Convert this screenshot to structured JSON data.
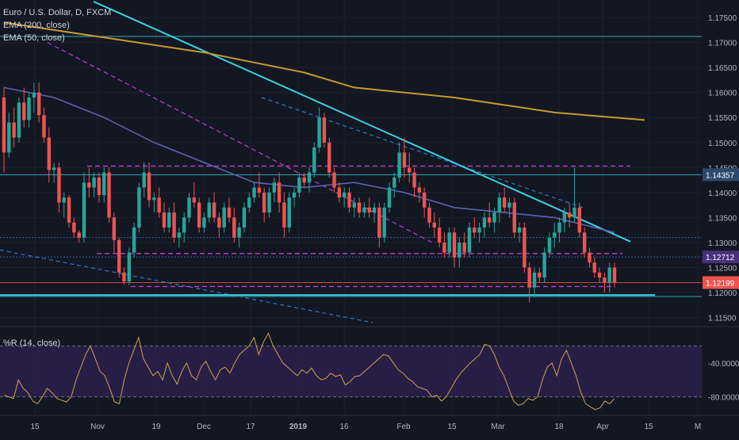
{
  "legend": {
    "title": "Euro / U.S. Dollar, D, FXCM",
    "ema200": "EMA (200, close)",
    "ema50": "EMA (50, close)",
    "wr": "%R (14, close)"
  },
  "colors": {
    "background": "#131722",
    "up": "#26a69a",
    "down": "#ef5350",
    "ema200": "#c79a2e",
    "ema50": "#5d62b5",
    "trendline": "#3ad0e0",
    "dashed_magenta": "#c43bd0",
    "dashed_blue": "#2f79c9",
    "wr_line": "#c9a44a",
    "wr_band": "#2a1f4a"
  },
  "chart_data": [
    {
      "type": "candlestick",
      "symbol": "Euro / U.S. Dollar, D, FXCM",
      "ylim": [
        1.1135,
        1.1785
      ],
      "y_ticks": [
        "1.17500",
        "1.17000",
        "1.16500",
        "1.16000",
        "1.15500",
        "1.15000",
        "1.14500",
        "1.14000",
        "1.13500",
        "1.13000",
        "1.12500",
        "1.12000",
        "1.11500"
      ],
      "x_ticks": [
        "15",
        "Nov",
        "19",
        "Dec",
        "17",
        "2019",
        "16",
        "Feb",
        "15",
        "Mar",
        "18",
        "Apr",
        "15",
        "M"
      ],
      "price_labels": [
        {
          "value": "1.14357",
          "color": "#2c4a6e"
        },
        {
          "value": "1.12712",
          "color": "#4a2f7a"
        },
        {
          "value": "1.12199",
          "color": "#ef5350"
        }
      ],
      "ohlc": [
        [
          1.159,
          1.161,
          1.144,
          1.148
        ],
        [
          1.148,
          1.156,
          1.147,
          1.154
        ],
        [
          1.154,
          1.157,
          1.149,
          1.151
        ],
        [
          1.151,
          1.159,
          1.15,
          1.158
        ],
        [
          1.158,
          1.161,
          1.153,
          1.1545
        ],
        [
          1.1545,
          1.16,
          1.153,
          1.159
        ],
        [
          1.159,
          1.162,
          1.156,
          1.16
        ],
        [
          1.16,
          1.162,
          1.154,
          1.1555
        ],
        [
          1.1555,
          1.157,
          1.15,
          1.151
        ],
        [
          1.151,
          1.153,
          1.142,
          1.1445
        ],
        [
          1.1445,
          1.146,
          1.142,
          1.145
        ],
        [
          1.145,
          1.146,
          1.136,
          1.138
        ],
        [
          1.138,
          1.14,
          1.135,
          1.139
        ],
        [
          1.139,
          1.1395,
          1.133,
          1.134
        ],
        [
          1.134,
          1.135,
          1.131,
          1.132
        ],
        [
          1.132,
          1.1325,
          1.13,
          1.131
        ],
        [
          1.131,
          1.144,
          1.13,
          1.142
        ],
        [
          1.142,
          1.145,
          1.139,
          1.141
        ],
        [
          1.141,
          1.144,
          1.139,
          1.143
        ],
        [
          1.143,
          1.144,
          1.138,
          1.1395
        ],
        [
          1.1395,
          1.145,
          1.138,
          1.144
        ],
        [
          1.144,
          1.145,
          1.134,
          1.135
        ],
        [
          1.135,
          1.136,
          1.128,
          1.1305
        ],
        [
          1.1305,
          1.131,
          1.123,
          1.124
        ],
        [
          1.124,
          1.125,
          1.1216,
          1.1222
        ],
        [
          1.1222,
          1.129,
          1.1215,
          1.128
        ],
        [
          1.128,
          1.134,
          1.127,
          1.133
        ],
        [
          1.133,
          1.142,
          1.132,
          1.141
        ],
        [
          1.141,
          1.146,
          1.139,
          1.144
        ],
        [
          1.144,
          1.146,
          1.137,
          1.1385
        ],
        [
          1.1385,
          1.14,
          1.136,
          1.139
        ],
        [
          1.139,
          1.141,
          1.135,
          1.136
        ],
        [
          1.136,
          1.138,
          1.132,
          1.133
        ],
        [
          1.133,
          1.137,
          1.132,
          1.136
        ],
        [
          1.136,
          1.138,
          1.13,
          1.131
        ],
        [
          1.131,
          1.133,
          1.129,
          1.132
        ],
        [
          1.132,
          1.136,
          1.13,
          1.135
        ],
        [
          1.135,
          1.14,
          1.134,
          1.139
        ],
        [
          1.139,
          1.142,
          1.137,
          1.138
        ],
        [
          1.138,
          1.139,
          1.132,
          1.133
        ],
        [
          1.133,
          1.136,
          1.132,
          1.135
        ],
        [
          1.135,
          1.139,
          1.134,
          1.138
        ],
        [
          1.138,
          1.14,
          1.134,
          1.135
        ],
        [
          1.135,
          1.136,
          1.131,
          1.133
        ],
        [
          1.133,
          1.138,
          1.132,
          1.137
        ],
        [
          1.137,
          1.139,
          1.134,
          1.135
        ],
        [
          1.135,
          1.137,
          1.13,
          1.131
        ],
        [
          1.131,
          1.134,
          1.129,
          1.133
        ],
        [
          1.133,
          1.138,
          1.132,
          1.137
        ],
        [
          1.137,
          1.14,
          1.136,
          1.139
        ],
        [
          1.139,
          1.142,
          1.138,
          1.141
        ],
        [
          1.141,
          1.144,
          1.139,
          1.14
        ],
        [
          1.14,
          1.141,
          1.134,
          1.136
        ],
        [
          1.136,
          1.141,
          1.135,
          1.14
        ],
        [
          1.14,
          1.143,
          1.138,
          1.142
        ],
        [
          1.142,
          1.144,
          1.136,
          1.138
        ],
        [
          1.138,
          1.14,
          1.131,
          1.133
        ],
        [
          1.133,
          1.14,
          1.132,
          1.139
        ],
        [
          1.139,
          1.141,
          1.137,
          1.14
        ],
        [
          1.14,
          1.144,
          1.139,
          1.143
        ],
        [
          1.143,
          1.144,
          1.141,
          1.142
        ],
        [
          1.142,
          1.145,
          1.14,
          1.144
        ],
        [
          1.144,
          1.15,
          1.143,
          1.149
        ],
        [
          1.149,
          1.157,
          1.148,
          1.155
        ],
        [
          1.155,
          1.156,
          1.149,
          1.15
        ],
        [
          1.15,
          1.151,
          1.143,
          1.144
        ],
        [
          1.144,
          1.145,
          1.14,
          1.141
        ],
        [
          1.141,
          1.142,
          1.138,
          1.139
        ],
        [
          1.139,
          1.141,
          1.137,
          1.14
        ],
        [
          1.14,
          1.141,
          1.136,
          1.137
        ],
        [
          1.137,
          1.139,
          1.135,
          1.138
        ],
        [
          1.138,
          1.139,
          1.135,
          1.136
        ],
        [
          1.136,
          1.138,
          1.135,
          1.137
        ],
        [
          1.137,
          1.139,
          1.135,
          1.136
        ],
        [
          1.136,
          1.138,
          1.134,
          1.137
        ],
        [
          1.137,
          1.138,
          1.129,
          1.131
        ],
        [
          1.131,
          1.138,
          1.13,
          1.137
        ],
        [
          1.137,
          1.142,
          1.136,
          1.141
        ],
        [
          1.141,
          1.144,
          1.139,
          1.143
        ],
        [
          1.143,
          1.15,
          1.142,
          1.148
        ],
        [
          1.148,
          1.151,
          1.143,
          1.145
        ],
        [
          1.145,
          1.148,
          1.142,
          1.144
        ],
        [
          1.144,
          1.145,
          1.139,
          1.141
        ],
        [
          1.141,
          1.142,
          1.138,
          1.14
        ],
        [
          1.14,
          1.141,
          1.135,
          1.137
        ],
        [
          1.137,
          1.138,
          1.133,
          1.134
        ],
        [
          1.134,
          1.136,
          1.131,
          1.133
        ],
        [
          1.133,
          1.135,
          1.129,
          1.13
        ],
        [
          1.13,
          1.132,
          1.127,
          1.128
        ],
        [
          1.128,
          1.133,
          1.127,
          1.132
        ],
        [
          1.132,
          1.133,
          1.125,
          1.127
        ],
        [
          1.127,
          1.131,
          1.125,
          1.13
        ],
        [
          1.13,
          1.132,
          1.127,
          1.128
        ],
        [
          1.128,
          1.134,
          1.127,
          1.133
        ],
        [
          1.133,
          1.135,
          1.131,
          1.132
        ],
        [
          1.132,
          1.134,
          1.13,
          1.133
        ],
        [
          1.133,
          1.136,
          1.131,
          1.135
        ],
        [
          1.135,
          1.138,
          1.133,
          1.134
        ],
        [
          1.134,
          1.137,
          1.132,
          1.136
        ],
        [
          1.136,
          1.14,
          1.134,
          1.139
        ],
        [
          1.139,
          1.141,
          1.136,
          1.137
        ],
        [
          1.137,
          1.139,
          1.135,
          1.138
        ],
        [
          1.138,
          1.139,
          1.131,
          1.132
        ],
        [
          1.132,
          1.134,
          1.13,
          1.133
        ],
        [
          1.133,
          1.134,
          1.124,
          1.125
        ],
        [
          1.125,
          1.126,
          1.118,
          1.121
        ],
        [
          1.121,
          1.125,
          1.119,
          1.124
        ],
        [
          1.124,
          1.125,
          1.122,
          1.123
        ],
        [
          1.123,
          1.129,
          1.122,
          1.128
        ],
        [
          1.128,
          1.132,
          1.127,
          1.131
        ],
        [
          1.131,
          1.134,
          1.129,
          1.132
        ],
        [
          1.132,
          1.135,
          1.13,
          1.134
        ],
        [
          1.134,
          1.137,
          1.132,
          1.136
        ],
        [
          1.136,
          1.138,
          1.133,
          1.135
        ],
        [
          1.135,
          1.145,
          1.134,
          1.137
        ],
        [
          1.137,
          1.138,
          1.131,
          1.132
        ],
        [
          1.132,
          1.133,
          1.127,
          1.128
        ],
        [
          1.128,
          1.129,
          1.125,
          1.126
        ],
        [
          1.126,
          1.127,
          1.123,
          1.124
        ],
        [
          1.124,
          1.125,
          1.122,
          1.123
        ],
        [
          1.123,
          1.124,
          1.12,
          1.122
        ],
        [
          1.122,
          1.126,
          1.12,
          1.125
        ],
        [
          1.125,
          1.126,
          1.121,
          1.122
        ]
      ],
      "ema200": [
        [
          0,
          1.174
        ],
        [
          20,
          1.171
        ],
        [
          40,
          1.168
        ],
        [
          60,
          1.164
        ],
        [
          70,
          1.161
        ],
        [
          90,
          1.159
        ],
        [
          110,
          1.156
        ],
        [
          128,
          1.1545
        ]
      ],
      "ema50": [
        [
          0,
          1.161
        ],
        [
          10,
          1.159
        ],
        [
          20,
          1.155
        ],
        [
          30,
          1.15
        ],
        [
          40,
          1.146
        ],
        [
          50,
          1.142
        ],
        [
          60,
          1.141
        ],
        [
          70,
          1.142
        ],
        [
          80,
          1.14
        ],
        [
          90,
          1.137
        ],
        [
          100,
          1.136
        ],
        [
          110,
          1.135
        ],
        [
          118,
          1.133
        ],
        [
          122,
          1.132
        ]
      ],
      "wr_panel": {
        "name": "%R (14, close)",
        "y_ticks": [
          "-40.0000",
          "-80.0000"
        ],
        "ylim": [
          -100,
          0
        ],
        "band": [
          -20,
          -80
        ],
        "values": [
          -78,
          -80,
          -82,
          -60,
          -70,
          -75,
          -85,
          -88,
          -80,
          -70,
          -75,
          -82,
          -84,
          -86,
          -80,
          -60,
          -45,
          -30,
          -20,
          -35,
          -50,
          -55,
          -70,
          -86,
          -88,
          -60,
          -40,
          -25,
          -10,
          -35,
          -45,
          -55,
          -50,
          -60,
          -40,
          -55,
          -65,
          -50,
          -40,
          -55,
          -60,
          -45,
          -38,
          -50,
          -60,
          -48,
          -45,
          -52,
          -40,
          -30,
          -25,
          -20,
          -10,
          -30,
          -15,
          -5,
          -20,
          -30,
          -40,
          -45,
          -50,
          -55,
          -48,
          -52,
          -46,
          -55,
          -60,
          -58,
          -52,
          -56,
          -54,
          -66,
          -62,
          -56,
          -55,
          -50,
          -45,
          -40,
          -35,
          -30,
          -32,
          -40,
          -48,
          -52,
          -58,
          -62,
          -68,
          -70,
          -72,
          -80,
          -78,
          -85,
          -80,
          -70,
          -60,
          -52,
          -46,
          -40,
          -35,
          -30,
          -18,
          -20,
          -30,
          -45,
          -55,
          -70,
          -85,
          -90,
          -88,
          -82,
          -84,
          -80,
          -60,
          -45,
          -40,
          -55,
          -35,
          -25,
          -40,
          -55,
          -75,
          -88,
          -92,
          -95,
          -93,
          -85,
          -88,
          -82
        ]
      }
    }
  ]
}
